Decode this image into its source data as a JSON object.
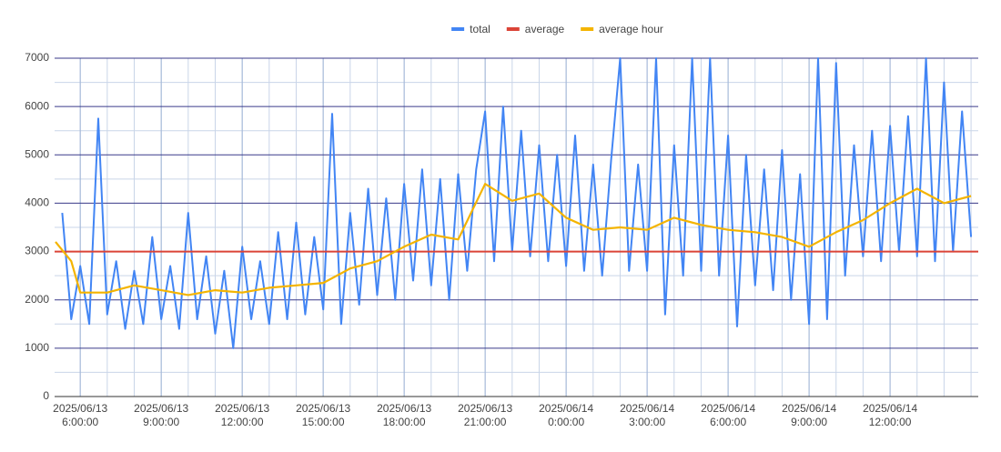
{
  "chart_data": {
    "type": "line",
    "xlim": [
      "2025/06/13 05:03",
      "2025/06/14 15:16"
    ],
    "ylim": [
      0,
      7000
    ],
    "yticks": [
      0,
      1000,
      2000,
      3000,
      4000,
      5000,
      6000,
      7000
    ],
    "xticks": [
      {
        "value": "2025/06/13 06:00",
        "label": "2025/06/13 6:00:00"
      },
      {
        "value": "2025/06/13 09:00",
        "label": "2025/06/13 9:00:00"
      },
      {
        "value": "2025/06/13 12:00",
        "label": "2025/06/13 12:00:00"
      },
      {
        "value": "2025/06/13 15:00",
        "label": "2025/06/13 15:00:00"
      },
      {
        "value": "2025/06/13 18:00",
        "label": "2025/06/13 18:00:00"
      },
      {
        "value": "2025/06/13 21:00",
        "label": "2025/06/13 21:00:00"
      },
      {
        "value": "2025/06/14 00:00",
        "label": "2025/06/14 0:00:00"
      },
      {
        "value": "2025/06/14 03:00",
        "label": "2025/06/14 3:00:00"
      },
      {
        "value": "2025/06/14 06:00",
        "label": "2025/06/14 6:00:00"
      },
      {
        "value": "2025/06/14 09:00",
        "label": "2025/06/14 9:00:00"
      },
      {
        "value": "2025/06/14 12:00",
        "label": "2025/06/14 12:00:00"
      }
    ],
    "grid": true,
    "legend": "top",
    "series": [
      {
        "name": "total",
        "color": "#4285f4",
        "x": [
          "2025/06/13 05:20",
          "2025/06/13 05:40",
          "2025/06/13 06:00",
          "2025/06/13 06:20",
          "2025/06/13 06:40",
          "2025/06/13 07:00",
          "2025/06/13 07:20",
          "2025/06/13 07:40",
          "2025/06/13 08:00",
          "2025/06/13 08:20",
          "2025/06/13 08:40",
          "2025/06/13 09:00",
          "2025/06/13 09:20",
          "2025/06/13 09:40",
          "2025/06/13 10:00",
          "2025/06/13 10:20",
          "2025/06/13 10:40",
          "2025/06/13 11:00",
          "2025/06/13 11:20",
          "2025/06/13 11:40",
          "2025/06/13 12:00",
          "2025/06/13 12:20",
          "2025/06/13 12:40",
          "2025/06/13 13:00",
          "2025/06/13 13:20",
          "2025/06/13 13:40",
          "2025/06/13 14:00",
          "2025/06/13 14:20",
          "2025/06/13 14:40",
          "2025/06/13 15:00",
          "2025/06/13 15:20",
          "2025/06/13 15:40",
          "2025/06/13 16:00",
          "2025/06/13 16:20",
          "2025/06/13 16:40",
          "2025/06/13 17:00",
          "2025/06/13 17:20",
          "2025/06/13 17:40",
          "2025/06/13 18:00",
          "2025/06/13 18:20",
          "2025/06/13 18:40",
          "2025/06/13 19:00",
          "2025/06/13 19:20",
          "2025/06/13 19:40",
          "2025/06/13 20:00",
          "2025/06/13 20:20",
          "2025/06/13 20:40",
          "2025/06/13 21:00",
          "2025/06/13 21:20",
          "2025/06/13 21:40",
          "2025/06/13 22:00",
          "2025/06/13 22:20",
          "2025/06/13 22:40",
          "2025/06/13 23:00",
          "2025/06/13 23:20",
          "2025/06/13 23:40",
          "2025/06/14 00:00",
          "2025/06/14 00:20",
          "2025/06/14 00:40",
          "2025/06/14 01:00",
          "2025/06/14 01:20",
          "2025/06/14 01:40",
          "2025/06/14 02:00",
          "2025/06/14 02:20",
          "2025/06/14 02:40",
          "2025/06/14 03:00",
          "2025/06/14 03:20",
          "2025/06/14 03:40",
          "2025/06/14 04:00",
          "2025/06/14 04:20",
          "2025/06/14 04:40",
          "2025/06/14 05:00",
          "2025/06/14 05:20",
          "2025/06/14 05:40",
          "2025/06/14 06:00",
          "2025/06/14 06:20",
          "2025/06/14 06:40",
          "2025/06/14 07:00",
          "2025/06/14 07:20",
          "2025/06/14 07:40",
          "2025/06/14 08:00",
          "2025/06/14 08:20",
          "2025/06/14 08:40",
          "2025/06/14 09:00",
          "2025/06/14 09:20",
          "2025/06/14 09:40",
          "2025/06/14 10:00",
          "2025/06/14 10:20",
          "2025/06/14 10:40",
          "2025/06/14 11:00",
          "2025/06/14 11:20",
          "2025/06/14 11:40",
          "2025/06/14 12:00",
          "2025/06/14 12:20",
          "2025/06/14 12:40",
          "2025/06/14 13:00",
          "2025/06/14 13:20",
          "2025/06/14 13:40",
          "2025/06/14 14:00",
          "2025/06/14 14:20",
          "2025/06/14 14:40",
          "2025/06/14 15:00"
        ],
        "values": [
          3800,
          1600,
          2700,
          1500,
          5750,
          1700,
          2800,
          1400,
          2600,
          1500,
          3300,
          1600,
          2700,
          1400,
          3800,
          1600,
          2900,
          1300,
          2600,
          1000,
          3100,
          1600,
          2800,
          1500,
          3400,
          1600,
          3600,
          1700,
          3300,
          1800,
          5850,
          1500,
          3800,
          1900,
          4300,
          2100,
          4100,
          2000,
          4400,
          2400,
          4700,
          2300,
          4500,
          2000,
          4600,
          2600,
          4700,
          5900,
          2800,
          6000,
          3000,
          5500,
          2900,
          5200,
          2800,
          5000,
          2700,
          5400,
          2600,
          4800,
          2500,
          4900,
          7000,
          2600,
          4800,
          2600,
          7000,
          1700,
          5200,
          2500,
          7000,
          2600,
          7000,
          2500,
          5400,
          1450,
          5000,
          2300,
          4700,
          2200,
          5100,
          2000,
          4600,
          1500,
          7000,
          1600,
          6900,
          2500,
          5200,
          2900,
          5500,
          2800,
          5600,
          3000,
          5800,
          2900,
          7000,
          2800,
          6500,
          3000,
          5900,
          3300
        ]
      },
      {
        "name": "average",
        "color": "#db4437",
        "value": 3000
      },
      {
        "name": "average hour",
        "color": "#f4b400",
        "x": [
          "2025/06/13 05:05",
          "2025/06/13 05:40",
          "2025/06/13 06:00",
          "2025/06/13 07:00",
          "2025/06/13 08:00",
          "2025/06/13 09:00",
          "2025/06/13 10:00",
          "2025/06/13 11:00",
          "2025/06/13 12:00",
          "2025/06/13 13:00",
          "2025/06/13 14:00",
          "2025/06/13 15:00",
          "2025/06/13 16:00",
          "2025/06/13 17:00",
          "2025/06/13 18:00",
          "2025/06/13 19:00",
          "2025/06/13 20:00",
          "2025/06/13 21:00",
          "2025/06/13 22:00",
          "2025/06/13 23:00",
          "2025/06/14 00:00",
          "2025/06/14 01:00",
          "2025/06/14 02:00",
          "2025/06/14 03:00",
          "2025/06/14 04:00",
          "2025/06/14 05:00",
          "2025/06/14 06:00",
          "2025/06/14 07:00",
          "2025/06/14 08:00",
          "2025/06/14 09:00",
          "2025/06/14 10:00",
          "2025/06/14 11:00",
          "2025/06/14 12:00",
          "2025/06/14 13:00",
          "2025/06/14 14:00",
          "2025/06/14 15:00"
        ],
        "values": [
          3200,
          2800,
          2150,
          2150,
          2300,
          2200,
          2100,
          2200,
          2150,
          2250,
          2300,
          2350,
          2650,
          2800,
          3100,
          3350,
          3250,
          4400,
          4050,
          4200,
          3700,
          3450,
          3500,
          3450,
          3700,
          3550,
          3450,
          3400,
          3300,
          3100,
          3400,
          3650,
          4000,
          4300,
          4000,
          4150
        ]
      }
    ]
  }
}
